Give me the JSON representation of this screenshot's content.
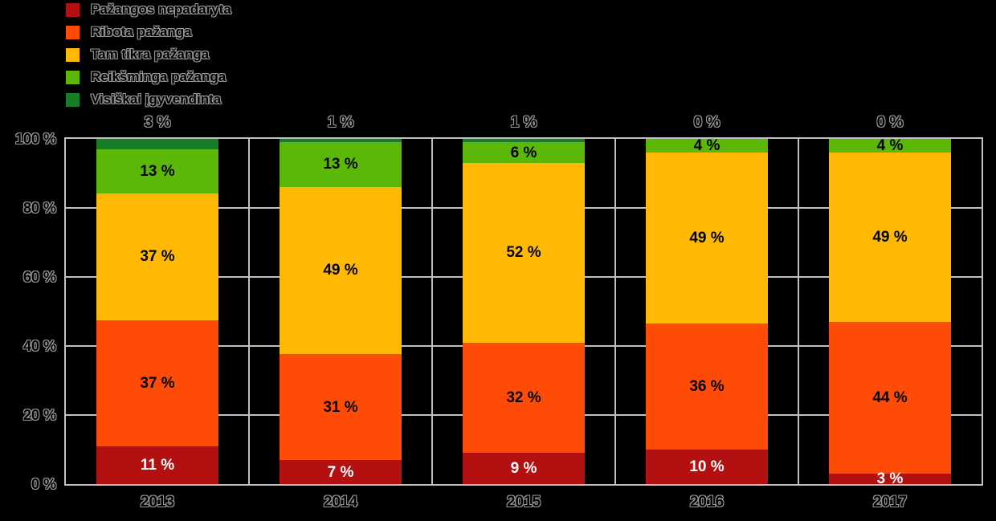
{
  "colors": {
    "background": "#000000",
    "grid": "#C0C0C0",
    "outline_text": "#979797",
    "inside_label_dark": "#000000",
    "inside_label_light": "#FFFFFF"
  },
  "legend": {
    "position": "top-left",
    "items": [
      {
        "label": "Pažangos nepadaryta",
        "color": "#B31111"
      },
      {
        "label": "Ribota pažanga",
        "color": "#FF4B08"
      },
      {
        "label": "Tam tikra pažanga",
        "color": "#FFB905"
      },
      {
        "label": "Reikšminga pažanga",
        "color": "#5CB808"
      },
      {
        "label": "Visiškai įgyvendinta",
        "color": "#177D26"
      }
    ]
  },
  "chart_data": {
    "type": "bar",
    "stacked": true,
    "grid": true,
    "legend_position": "top-left",
    "title": "",
    "xlabel": "",
    "ylabel": "",
    "ylim": [
      0,
      100
    ],
    "value_suffix": " %",
    "categories": [
      "2013",
      "2014",
      "2015",
      "2016",
      "2017"
    ],
    "y_ticks": [
      "100 %",
      "80 %",
      "60 %",
      "40 %",
      "20 %",
      "0 %"
    ],
    "series": [
      {
        "name": "Pažangos nepadaryta",
        "color": "#B31111",
        "label_color": "#FFFFFF",
        "values": [
          11,
          7,
          9,
          10,
          3
        ]
      },
      {
        "name": "Ribota pažanga",
        "color": "#FF4B08",
        "label_color": "#000000",
        "values": [
          37,
          31,
          32,
          36,
          44
        ]
      },
      {
        "name": "Tam tikra pažanga",
        "color": "#FFB905",
        "label_color": "#000000",
        "values": [
          37,
          49,
          52,
          49,
          49
        ]
      },
      {
        "name": "Reikšminga pažanga",
        "color": "#5CB808",
        "label_color": "#000000",
        "values": [
          13,
          13,
          6,
          4,
          4
        ]
      },
      {
        "name": "Visiškai įgyvendinta",
        "color": "#177D26",
        "label_color": "#000000",
        "values": [
          3,
          1,
          1,
          0,
          0
        ],
        "labels_above": true
      }
    ],
    "top_labels": [
      "3 %",
      "1 %",
      "1 %",
      "0 %",
      "0 %"
    ]
  }
}
